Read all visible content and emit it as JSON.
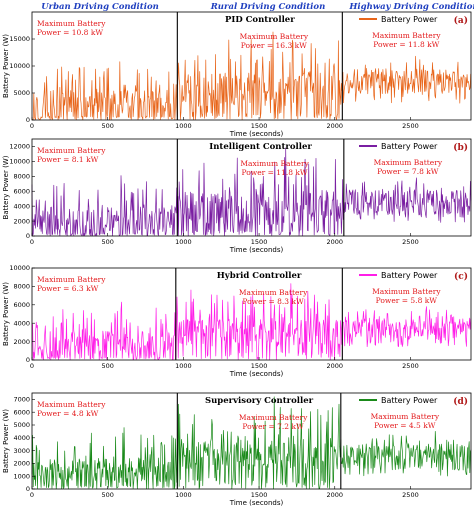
{
  "header": {
    "conditions": [
      "Urban Driving Condition",
      "Rural Driving Condition",
      "Highway Driving Condition"
    ]
  },
  "chart_data": [
    {
      "type": "line",
      "title": "PID Controller",
      "panel_label": "(a)",
      "xlabel": "Time (seconds)",
      "ylabel": "Battery Power (W)",
      "xlim": [
        0,
        2900
      ],
      "ylim": [
        0,
        20000
      ],
      "xticks": [
        0,
        500,
        1000,
        1500,
        2000,
        2500
      ],
      "yticks": [
        0,
        5000,
        10000,
        15000
      ],
      "color": "#e8651a",
      "legend": "Battery Power",
      "segment_boundaries": [
        960,
        2050
      ],
      "annotations": [
        {
          "lines": [
            "Maximum Battery",
            "Power = 10.8 kW"
          ],
          "segment": "urban"
        },
        {
          "lines": [
            "Maximum Battery",
            "Power = 16.3 kW"
          ],
          "segment": "rural"
        },
        {
          "lines": [
            "Maximum Battery",
            "Power = 11.8 kW"
          ],
          "segment": "highway"
        }
      ],
      "segments": [
        {
          "name": "urban",
          "x": [
            0,
            960
          ],
          "peak": 10800,
          "base": 1200
        },
        {
          "name": "rural",
          "x": [
            960,
            2050
          ],
          "peak": 16300,
          "base": 2500
        },
        {
          "name": "highway",
          "x": [
            2050,
            2900
          ],
          "peak": 11800,
          "base": 6500
        }
      ]
    },
    {
      "type": "line",
      "title": "Intelligent Controller",
      "panel_label": "(b)",
      "xlabel": "Time (seconds)",
      "ylabel": "Battery Power (W)",
      "xlim": [
        0,
        2900
      ],
      "ylim": [
        0,
        13000
      ],
      "xticks": [
        0,
        500,
        1000,
        1500,
        2000,
        2500
      ],
      "yticks": [
        0,
        2000,
        4000,
        6000,
        8000,
        10000,
        12000
      ],
      "color": "#7a1fa2",
      "legend": "Battery Power",
      "segment_boundaries": [
        960,
        2060
      ],
      "annotations": [
        {
          "lines": [
            "Maximum Battery",
            "Power = 8.1 kW"
          ],
          "segment": "urban"
        },
        {
          "lines": [
            "Maximum Battery",
            "Power = 11.8 kW"
          ],
          "segment": "rural"
        },
        {
          "lines": [
            "Maximum Battery",
            "Power = 7.8 kW"
          ],
          "segment": "highway"
        }
      ],
      "segments": [
        {
          "name": "urban",
          "x": [
            0,
            960
          ],
          "peak": 8100,
          "base": 600
        },
        {
          "name": "rural",
          "x": [
            960,
            2060
          ],
          "peak": 11800,
          "base": 1500
        },
        {
          "name": "highway",
          "x": [
            2060,
            2900
          ],
          "peak": 7800,
          "base": 4000
        }
      ]
    },
    {
      "type": "line",
      "title": "Hybrid Controller",
      "panel_label": "(c)",
      "xlabel": "Time (seconds)",
      "ylabel": "Battery Power (W)",
      "xlim": [
        0,
        2900
      ],
      "ylim": [
        0,
        10000
      ],
      "xticks": [
        0,
        500,
        1000,
        1500,
        2000,
        2500
      ],
      "yticks": [
        0,
        2000,
        4000,
        6000,
        8000,
        10000
      ],
      "color": "#ff1fe8",
      "legend": "Battery Power",
      "segment_boundaries": [
        950,
        2050
      ],
      "annotations": [
        {
          "lines": [
            "Maximum Battery",
            "Power = 6.3 kW"
          ],
          "segment": "urban"
        },
        {
          "lines": [
            "Maximum Battery",
            "Power = 8.3 kW"
          ],
          "segment": "rural"
        },
        {
          "lines": [
            "Maximum Battery",
            "Power = 5.8 kW"
          ],
          "segment": "highway"
        }
      ],
      "segments": [
        {
          "name": "urban",
          "x": [
            0,
            950
          ],
          "peak": 6300,
          "base": 500
        },
        {
          "name": "rural",
          "x": [
            950,
            2050
          ],
          "peak": 8300,
          "base": 1500
        },
        {
          "name": "highway",
          "x": [
            2050,
            2900
          ],
          "peak": 5800,
          "base": 3200
        }
      ]
    },
    {
      "type": "line",
      "title": "Supervisory Controller",
      "panel_label": "(d)",
      "xlabel": "Time (seconds)",
      "ylabel": "Battery Power (W)",
      "xlim": [
        0,
        2900
      ],
      "ylim": [
        0,
        7500
      ],
      "xticks": [
        0,
        500,
        1000,
        1500,
        2000,
        2500
      ],
      "yticks": [
        0,
        1000,
        2000,
        3000,
        4000,
        5000,
        6000,
        7000
      ],
      "color": "#1a8a1a",
      "legend": "Battery Power",
      "segment_boundaries": [
        960,
        2040
      ],
      "annotations": [
        {
          "lines": [
            "Maximum Battery",
            "Power = 4.8 kW"
          ],
          "segment": "urban"
        },
        {
          "lines": [
            "Maximum Battery",
            "Power = 7.2 kW"
          ],
          "segment": "rural"
        },
        {
          "lines": [
            "Maximum Battery",
            "Power = 4.5 kW"
          ],
          "segment": "highway"
        }
      ],
      "segments": [
        {
          "name": "urban",
          "x": [
            0,
            960
          ],
          "peak": 4800,
          "base": 500
        },
        {
          "name": "rural",
          "x": [
            960,
            2040
          ],
          "peak": 7200,
          "base": 1500
        },
        {
          "name": "highway",
          "x": [
            2040,
            2900
          ],
          "peak": 4500,
          "base": 2200
        }
      ]
    }
  ]
}
